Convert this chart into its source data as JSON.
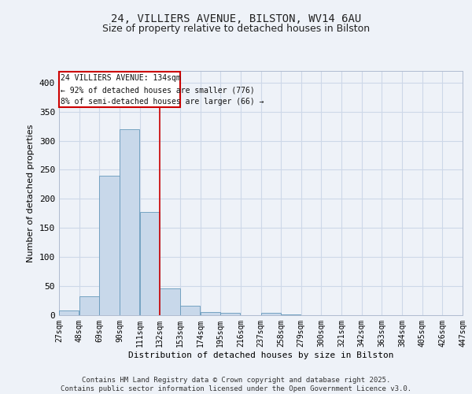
{
  "title_line1": "24, VILLIERS AVENUE, BILSTON, WV14 6AU",
  "title_line2": "Size of property relative to detached houses in Bilston",
  "xlabel": "Distribution of detached houses by size in Bilston",
  "ylabel": "Number of detached properties",
  "bin_edges": [
    27,
    48,
    69,
    90,
    111,
    132,
    153,
    174,
    195,
    216,
    237,
    258,
    279,
    300,
    321,
    342,
    363,
    384,
    405,
    426,
    447
  ],
  "bar_heights": [
    8,
    33,
    240,
    320,
    178,
    46,
    16,
    6,
    4,
    0,
    4,
    1,
    0,
    0,
    0,
    0,
    0,
    0,
    0,
    0,
    2
  ],
  "bar_color": "#c8d8ea",
  "bar_edge_color": "#6699bb",
  "vline_x": 132,
  "vline_color": "#cc0000",
  "ylim": [
    0,
    420
  ],
  "yticks": [
    0,
    50,
    100,
    150,
    200,
    250,
    300,
    350,
    400
  ],
  "grid_color": "#cdd8e8",
  "annotation_text_line1": "24 VILLIERS AVENUE: 134sqm",
  "annotation_text_line2": "← 92% of detached houses are smaller (776)",
  "annotation_text_line3": "8% of semi-detached houses are larger (66) →",
  "annotation_box_color": "#cc0000",
  "footnote": "Contains HM Land Registry data © Crown copyright and database right 2025.\nContains public sector information licensed under the Open Government Licence v3.0.",
  "bg_color": "#eef2f8",
  "plot_bg_color": "#eef2f8",
  "title_fontsize": 10,
  "subtitle_fontsize": 9
}
